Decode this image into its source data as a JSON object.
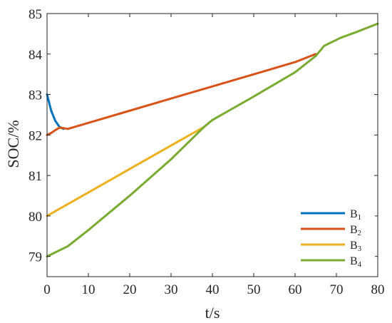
{
  "chart_data": {
    "type": "line",
    "title": "",
    "xlabel": "t/s",
    "ylabel": "SOC/%",
    "xlim": [
      0,
      80
    ],
    "ylim": [
      78.5,
      85
    ],
    "xticks": [
      0,
      10,
      20,
      30,
      40,
      50,
      60,
      70,
      80
    ],
    "yticks": [
      79,
      80,
      81,
      82,
      83,
      84,
      85
    ],
    "grid": false,
    "legend_position": "bottom-right",
    "series": [
      {
        "name": "B",
        "subscript": "1",
        "color": "#0072BD",
        "x": [
          0,
          1,
          2,
          3,
          4
        ],
        "y": [
          83.0,
          82.6,
          82.35,
          82.2,
          82.15
        ]
      },
      {
        "name": "B",
        "subscript": "2",
        "color": "#D95319",
        "x": [
          0,
          1,
          2,
          3,
          4,
          5,
          10,
          20,
          30,
          40,
          50,
          60,
          65
        ],
        "y": [
          82.0,
          82.05,
          82.12,
          82.18,
          82.17,
          82.15,
          82.3,
          82.6,
          82.9,
          83.2,
          83.5,
          83.8,
          84.0
        ]
      },
      {
        "name": "B",
        "subscript": "3",
        "color": "#EDB120",
        "x": [
          0,
          10,
          20,
          30,
          38
        ],
        "y": [
          80.0,
          80.58,
          81.16,
          81.74,
          82.2
        ]
      },
      {
        "name": "B",
        "subscript": "4",
        "color": "#77AC30",
        "x": [
          0,
          5,
          10,
          20,
          30,
          38,
          40,
          50,
          60,
          65,
          67,
          71,
          75,
          80
        ],
        "y": [
          79.0,
          79.25,
          79.65,
          80.5,
          81.4,
          82.2,
          82.37,
          82.95,
          83.55,
          83.95,
          84.2,
          84.4,
          84.55,
          84.75
        ]
      }
    ]
  }
}
